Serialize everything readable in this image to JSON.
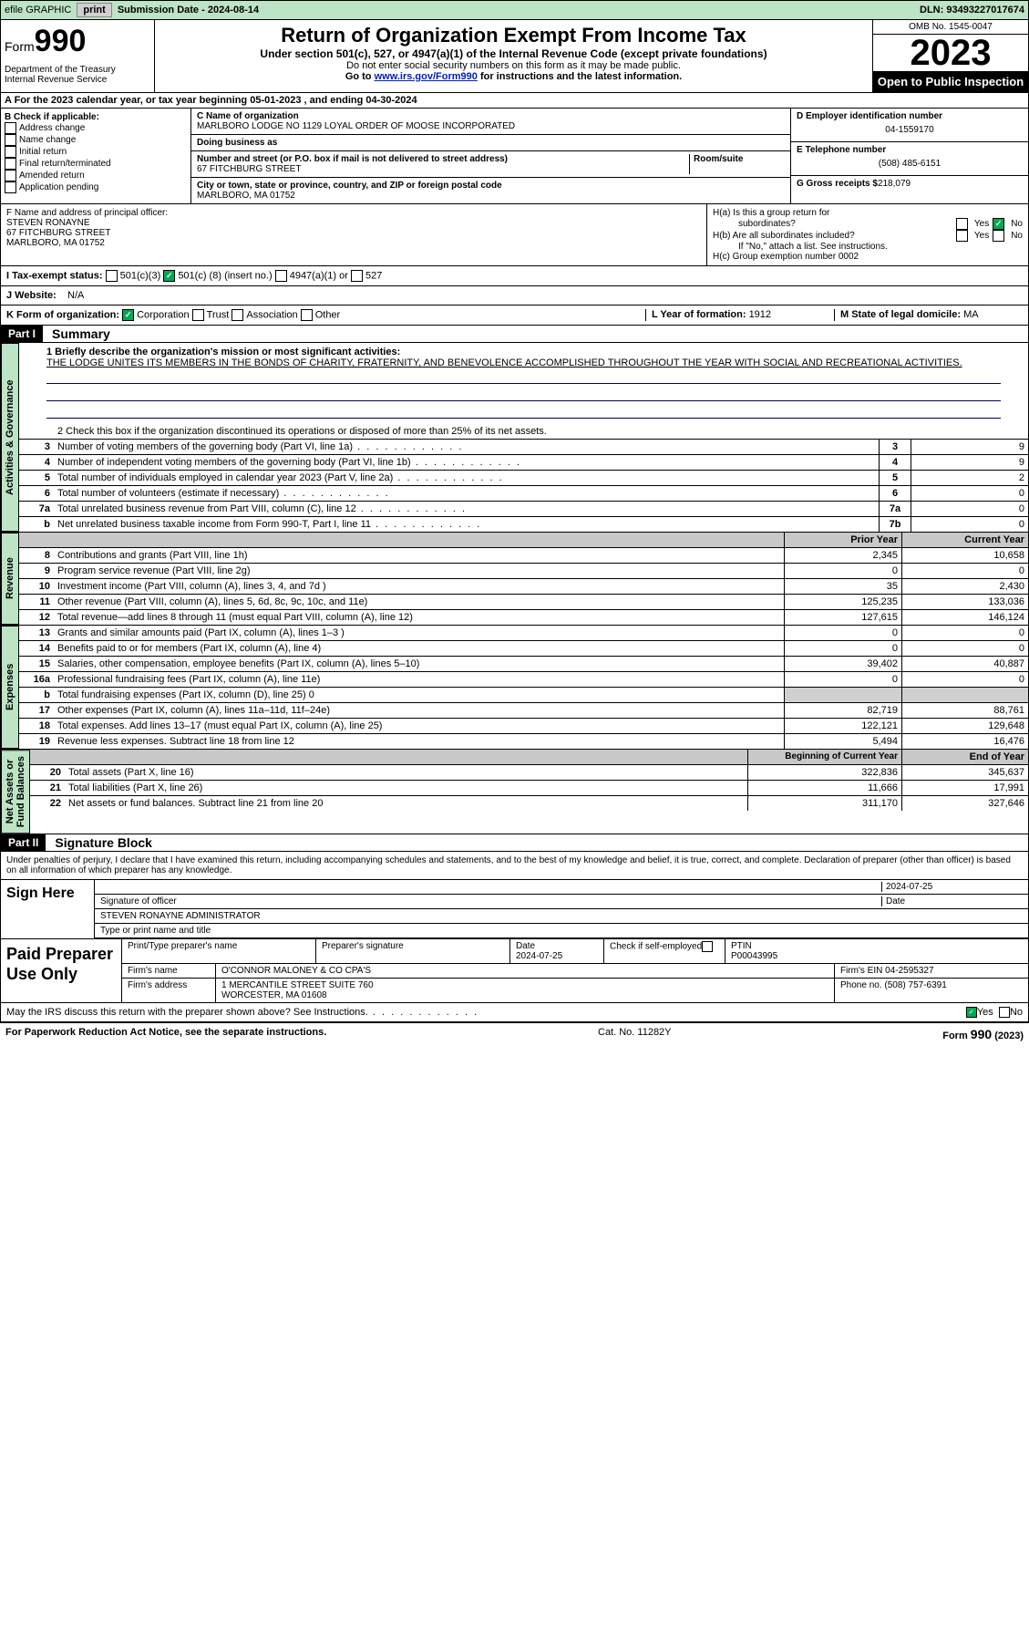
{
  "topbar": {
    "efile": "efile GRAPHIC",
    "print": "print",
    "sub_lbl": "Submission Date - ",
    "sub_date": "2024-08-14",
    "dln_lbl": "DLN: ",
    "dln": "93493227017674"
  },
  "header": {
    "form": "Form",
    "f990": "990",
    "title": "Return of Organization Exempt From Income Tax",
    "sub1": "Under section 501(c), 527, or 4947(a)(1) of the Internal Revenue Code (except private foundations)",
    "sub2": "Do not enter social security numbers on this form as it may be made public.",
    "goto": "Go to ",
    "goto_link": "www.irs.gov/Form990",
    "goto2": " for instructions and the latest information.",
    "dept": "Department of the Treasury\nInternal Revenue Service",
    "omb": "OMB No. 1545-0047",
    "year": "2023",
    "otp": "Open to Public Inspection"
  },
  "rowA": {
    "pre": "A  For the 2023 calendar year, or tax year beginning ",
    "d1": "05-01-2023",
    "mid": "   , and ending ",
    "d2": "04-30-2024"
  },
  "colB": {
    "hdr": "B Check if applicable:",
    "items": [
      "Address change",
      "Name change",
      "Initial return",
      "Final return/terminated",
      "Amended return",
      "Application pending"
    ]
  },
  "colC": {
    "name_lbl": "C Name of organization",
    "name": "MARLBORO LODGE NO 1129 LOYAL ORDER OF MOOSE INCORPORATED",
    "dba_lbl": "Doing business as",
    "dba": "",
    "addr_lbl": "Number and street (or P.O. box if mail is not delivered to street address)",
    "room_lbl": "Room/suite",
    "addr": "67 FITCHBURG STREET",
    "city_lbl": "City or town, state or province, country, and ZIP or foreign postal code",
    "city": "MARLBORO, MA  01752"
  },
  "colD": {
    "ein_lbl": "D Employer identification number",
    "ein": "04-1559170",
    "tel_lbl": "E Telephone number",
    "tel": "(508) 485-6151",
    "gross_lbl": "G Gross receipts $",
    "gross": "218,079"
  },
  "rowF": {
    "lbl": "F  Name and address of principal officer:",
    "name": "STEVEN RONAYNE",
    "addr": "67 FITCHBURG STREET",
    "city": "MARLBORO, MA  01752"
  },
  "rowH": {
    "a": "H(a)  Is this a group return for",
    "a2": "subordinates?",
    "b": "H(b)  Are all subordinates included?",
    "b2": "If \"No,\" attach a list. See instructions.",
    "c": "H(c)  Group exemption number   ",
    "c_val": "0002",
    "yes": "Yes",
    "no": "No"
  },
  "rowI": {
    "lbl": "I     Tax-exempt status:",
    "o1": "501(c)(3)",
    "o2": "501(c) (",
    "o2n": "8",
    "o2s": ") (insert no.)",
    "o3": "4947(a)(1) or",
    "o4": "527"
  },
  "rowJ": {
    "lbl": "J    Website:",
    "val": "N/A"
  },
  "rowK": {
    "lbl": "K Form of organization:",
    "o1": "Corporation",
    "o2": "Trust",
    "o3": "Association",
    "o4": "Other"
  },
  "rowL": {
    "lbl": "L Year of formation: ",
    "val": "1912"
  },
  "rowM": {
    "lbl": "M State of legal domicile: ",
    "val": "MA"
  },
  "part1": {
    "hdr": "Part I",
    "title": "Summary"
  },
  "mission": {
    "q": "1   Briefly describe the organization's mission or most significant activities:",
    "txt": "THE LODGE UNITES ITS MEMBERS IN THE BONDS OF CHARITY, FRATERNITY, AND BENEVOLENCE ACCOMPLISHED THROUGHOUT THE YEAR WITH SOCIAL AND RECREATIONAL ACTIVITIES."
  },
  "q2": "2    Check this box        if the organization discontinued its operations or disposed of more than 25% of its net assets.",
  "gov_rows": [
    {
      "n": "3",
      "t": "Number of voting members of the governing body (Part VI, line 1a)",
      "box": "3",
      "v": "9"
    },
    {
      "n": "4",
      "t": "Number of independent voting members of the governing body (Part VI, line 1b)",
      "box": "4",
      "v": "9"
    },
    {
      "n": "5",
      "t": "Total number of individuals employed in calendar year 2023 (Part V, line 2a)",
      "box": "5",
      "v": "2"
    },
    {
      "n": "6",
      "t": "Total number of volunteers (estimate if necessary)",
      "box": "6",
      "v": "0"
    },
    {
      "n": "7a",
      "t": "Total unrelated business revenue from Part VIII, column (C), line 12",
      "box": "7a",
      "v": "0"
    },
    {
      "n": "b",
      "t": "Net unrelated business taxable income from Form 990-T, Part I, line 11",
      "box": "7b",
      "v": "0"
    }
  ],
  "vtabs": {
    "gov": "Activities & Governance",
    "rev": "Revenue",
    "exp": "Expenses",
    "net": "Net Assets or\nFund Balances"
  },
  "ph": {
    "py": "Prior Year",
    "cy": "Current Year",
    "bcy": "Beginning of Current Year",
    "eoy": "End of Year"
  },
  "rev_rows": [
    {
      "n": "8",
      "t": "Contributions and grants (Part VIII, line 1h)",
      "py": "2,345",
      "cy": "10,658"
    },
    {
      "n": "9",
      "t": "Program service revenue (Part VIII, line 2g)",
      "py": "0",
      "cy": "0"
    },
    {
      "n": "10",
      "t": "Investment income (Part VIII, column (A), lines 3, 4, and 7d )",
      "py": "35",
      "cy": "2,430"
    },
    {
      "n": "11",
      "t": "Other revenue (Part VIII, column (A), lines 5, 6d, 8c, 9c, 10c, and 11e)",
      "py": "125,235",
      "cy": "133,036"
    },
    {
      "n": "12",
      "t": "Total revenue—add lines 8 through 11 (must equal Part VIII, column (A), line 12)",
      "py": "127,615",
      "cy": "146,124"
    }
  ],
  "exp_rows": [
    {
      "n": "13",
      "t": "Grants and similar amounts paid (Part IX, column (A), lines 1–3 )",
      "py": "0",
      "cy": "0"
    },
    {
      "n": "14",
      "t": "Benefits paid to or for members (Part IX, column (A), line 4)",
      "py": "0",
      "cy": "0"
    },
    {
      "n": "15",
      "t": "Salaries, other compensation, employee benefits (Part IX, column (A), lines 5–10)",
      "py": "39,402",
      "cy": "40,887"
    },
    {
      "n": "16a",
      "t": "Professional fundraising fees (Part IX, column (A), line 11e)",
      "py": "0",
      "cy": "0"
    },
    {
      "n": "b",
      "t": "Total fundraising expenses (Part IX, column (D), line 25) 0",
      "py": "",
      "cy": "",
      "shade": true
    },
    {
      "n": "17",
      "t": "Other expenses (Part IX, column (A), lines 11a–11d, 11f–24e)",
      "py": "82,719",
      "cy": "88,761"
    },
    {
      "n": "18",
      "t": "Total expenses. Add lines 13–17 (must equal Part IX, column (A), line 25)",
      "py": "122,121",
      "cy": "129,648"
    },
    {
      "n": "19",
      "t": "Revenue less expenses. Subtract line 18 from line 12",
      "py": "5,494",
      "cy": "16,476"
    }
  ],
  "net_rows": [
    {
      "n": "20",
      "t": "Total assets (Part X, line 16)",
      "py": "322,836",
      "cy": "345,637"
    },
    {
      "n": "21",
      "t": "Total liabilities (Part X, line 26)",
      "py": "11,666",
      "cy": "17,991"
    },
    {
      "n": "22",
      "t": "Net assets or fund balances. Subtract line 21 from line 20",
      "py": "311,170",
      "cy": "327,646"
    }
  ],
  "part2": {
    "hdr": "Part II",
    "title": "Signature Block"
  },
  "perjury": "Under penalties of perjury, I declare that I have examined this return, including accompanying schedules and statements, and to the best of my knowledge and belief, it is true, correct, and complete. Declaration of preparer (other than officer) is based on all information of which preparer has any knowledge.",
  "sign": {
    "here": "Sign Here",
    "sig_lbl": "Signature of officer",
    "date_lbl": "Date",
    "date": "2024-07-25",
    "name": "STEVEN RONAYNE  ADMINISTRATOR",
    "name_lbl": "Type or print name and title"
  },
  "paid": {
    "lbl": "Paid Preparer Use Only",
    "r1": {
      "c1": "Print/Type preparer's name",
      "c2": "Preparer's signature",
      "c3": "Date",
      "c3v": "2024-07-25",
      "c4": "Check        if self-employed",
      "c5": "PTIN",
      "c5v": "P00043995"
    },
    "r2": {
      "c1": "Firm's name",
      "c1v": "O'CONNOR MALONEY & CO CPA'S",
      "c2": "Firm's EIN",
      "c2v": "04-2595327"
    },
    "r3": {
      "c1": "Firm's address",
      "c1v": "1 MERCANTILE STREET SUITE 760",
      "c1v2": "WORCESTER, MA  01608",
      "c2": "Phone no.",
      "c2v": "(508) 757-6391"
    }
  },
  "discuss": {
    "q": "May the IRS discuss this return with the preparer shown above? See Instructions.",
    "yes": "Yes",
    "no": "No"
  },
  "footer": {
    "l": "For Paperwork Reduction Act Notice, see the separate instructions.",
    "m": "Cat. No. 11282Y",
    "r": "Form 990 (2023)"
  }
}
